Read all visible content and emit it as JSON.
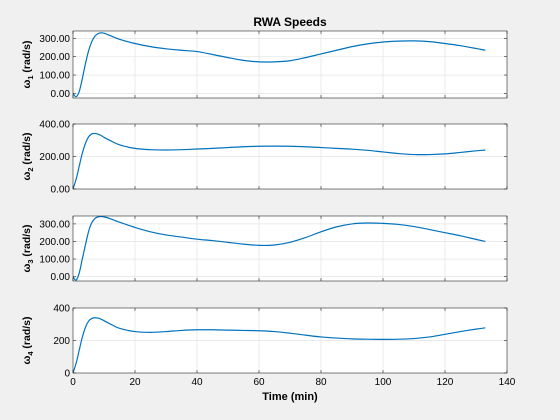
{
  "chart_data": [
    {
      "type": "line",
      "title": "RWA Speeds",
      "ylabel_symbol": "ω",
      "ylabel_sub": "1",
      "ylabel_unit": "(rad/s)",
      "xlim": [
        0,
        140
      ],
      "ylim": [
        -25,
        340
      ],
      "yticks": [
        0,
        100,
        200,
        300
      ],
      "ytick_labels": [
        "0.00",
        "100.00",
        "200.00",
        "300.00"
      ],
      "xticks": [
        0,
        20,
        40,
        60,
        80,
        100,
        120,
        140
      ],
      "xtick_labels": [],
      "grid": true,
      "color": "#0072BD",
      "series": [
        {
          "x": [
            0,
            1,
            2,
            3,
            4,
            5,
            6,
            7,
            8,
            9,
            10,
            12,
            15,
            20,
            25,
            30,
            35,
            40,
            45,
            50,
            55,
            60,
            65,
            70,
            75,
            80,
            85,
            90,
            95,
            100,
            105,
            110,
            115,
            120,
            125,
            130,
            133
          ],
          "y": [
            0,
            -18,
            10,
            80,
            160,
            230,
            280,
            310,
            325,
            330,
            328,
            315,
            295,
            272,
            255,
            243,
            235,
            228,
            212,
            195,
            180,
            172,
            172,
            178,
            195,
            215,
            235,
            255,
            270,
            280,
            285,
            286,
            282,
            272,
            260,
            245,
            235
          ]
        }
      ]
    },
    {
      "type": "line",
      "title": "",
      "ylabel_symbol": "ω",
      "ylabel_sub": "2",
      "ylabel_unit": "(rad/s)",
      "xlim": [
        0,
        140
      ],
      "ylim": [
        0,
        400
      ],
      "yticks": [
        0,
        200,
        400
      ],
      "ytick_labels": [
        "0.00",
        "200.00",
        "400.00"
      ],
      "xticks": [
        0,
        20,
        40,
        60,
        80,
        100,
        120,
        140
      ],
      "xtick_labels": [],
      "grid": true,
      "color": "#0072BD",
      "series": [
        {
          "x": [
            0,
            1,
            2,
            3,
            4,
            5,
            6,
            7,
            8,
            9,
            10,
            12,
            15,
            20,
            25,
            30,
            35,
            40,
            45,
            50,
            55,
            60,
            65,
            70,
            75,
            80,
            85,
            90,
            95,
            100,
            105,
            110,
            115,
            120,
            125,
            130,
            133
          ],
          "y": [
            0,
            60,
            140,
            220,
            280,
            320,
            338,
            342,
            338,
            330,
            318,
            298,
            272,
            250,
            242,
            240,
            242,
            246,
            250,
            255,
            260,
            263,
            264,
            263,
            260,
            255,
            250,
            245,
            238,
            228,
            218,
            212,
            212,
            216,
            225,
            235,
            240
          ]
        }
      ]
    },
    {
      "type": "line",
      "title": "",
      "ylabel_symbol": "ω",
      "ylabel_sub": "3",
      "ylabel_unit": "(rad/s)",
      "xlim": [
        0,
        140
      ],
      "ylim": [
        -25,
        345
      ],
      "yticks": [
        0,
        100,
        200,
        300
      ],
      "ytick_labels": [
        "0.00",
        "100.00",
        "200.00",
        "300.00"
      ],
      "xticks": [
        0,
        20,
        40,
        60,
        80,
        100,
        120,
        140
      ],
      "xtick_labels": [],
      "grid": true,
      "color": "#0072BD",
      "series": [
        {
          "x": [
            0,
            1,
            2,
            3,
            4,
            5,
            6,
            7,
            8,
            9,
            10,
            12,
            15,
            20,
            25,
            30,
            35,
            40,
            45,
            50,
            55,
            60,
            65,
            70,
            75,
            80,
            85,
            90,
            95,
            100,
            105,
            110,
            115,
            120,
            125,
            130,
            133
          ],
          "y": [
            0,
            -20,
            20,
            100,
            180,
            255,
            305,
            330,
            340,
            342,
            340,
            330,
            310,
            280,
            255,
            237,
            225,
            213,
            205,
            195,
            185,
            178,
            180,
            195,
            222,
            255,
            283,
            300,
            305,
            303,
            297,
            285,
            268,
            250,
            232,
            212,
            200
          ]
        }
      ]
    },
    {
      "type": "line",
      "title": "",
      "ylabel_symbol": "ω",
      "ylabel_sub": "4",
      "ylabel_unit": "(rad/s)",
      "xlabel": "Time (min)",
      "xlim": [
        0,
        140
      ],
      "ylim": [
        0,
        400
      ],
      "yticks": [
        0,
        200,
        400
      ],
      "ytick_labels": [
        "0",
        "200",
        "400"
      ],
      "xticks": [
        0,
        20,
        40,
        60,
        80,
        100,
        120,
        140
      ],
      "xtick_labels": [
        "0",
        "20",
        "40",
        "60",
        "80",
        "100",
        "120",
        "140"
      ],
      "grid": true,
      "color": "#0072BD",
      "series": [
        {
          "x": [
            0,
            1,
            2,
            3,
            4,
            5,
            6,
            7,
            8,
            9,
            10,
            12,
            15,
            20,
            25,
            30,
            35,
            40,
            45,
            50,
            55,
            60,
            65,
            70,
            75,
            80,
            85,
            90,
            95,
            100,
            105,
            110,
            115,
            120,
            125,
            130,
            133
          ],
          "y": [
            0,
            60,
            140,
            220,
            280,
            318,
            335,
            340,
            338,
            332,
            322,
            302,
            275,
            255,
            250,
            255,
            262,
            266,
            266,
            264,
            262,
            260,
            255,
            245,
            233,
            222,
            215,
            210,
            208,
            207,
            208,
            212,
            222,
            238,
            255,
            270,
            278
          ]
        }
      ]
    }
  ]
}
